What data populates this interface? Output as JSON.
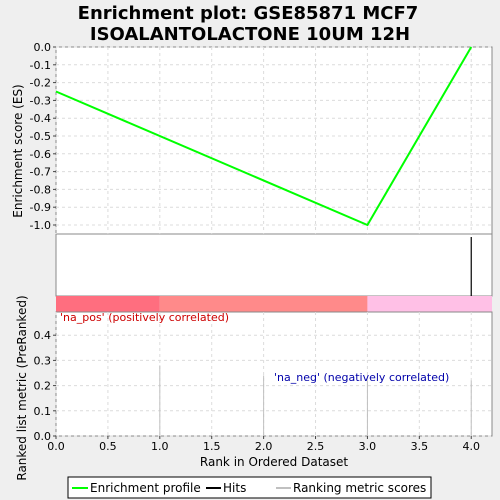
{
  "chart_data": {
    "title_line1": "Enrichment plot: GSE85871 MCF7",
    "title_line2": "ISOALANTOLACTONE 10UM 12H",
    "type": "line",
    "es_panel": {
      "ylabel": "Enrichment score (ES)",
      "ylim": [
        -1.05,
        0.0
      ],
      "yticks": [
        "0.0",
        "-0.1",
        "-0.2",
        "-0.3",
        "-0.4",
        "-0.5",
        "-0.6",
        "-0.7",
        "-0.8",
        "-0.9",
        "-1.0"
      ],
      "ytick_values": [
        0.0,
        -0.1,
        -0.2,
        -0.3,
        -0.4,
        -0.5,
        -0.6,
        -0.7,
        -0.8,
        -0.9,
        -1.0
      ],
      "series": [
        {
          "name": "Enrichment profile",
          "color": "#00ff00",
          "x": [
            0,
            3,
            4
          ],
          "y": [
            -0.25,
            -1.0,
            0.0
          ]
        }
      ],
      "grid": true
    },
    "hits_panel": {
      "hits_x": [
        4
      ]
    },
    "color_bar": {
      "segments": [
        {
          "x0": 0,
          "x1": 1,
          "color": "#ff6e7f"
        },
        {
          "x0": 1,
          "x1": 3,
          "color": "#ff8a8a"
        },
        {
          "x0": 3,
          "x1": 4.2,
          "color": "#ffc0e6"
        }
      ]
    },
    "metric_panel": {
      "ylabel": "Ranked list metric (PreRanked)",
      "ylim": [
        0.0,
        0.48
      ],
      "yticks": [
        "0.0",
        "0.1",
        "0.2",
        "0.3",
        "0.4"
      ],
      "ytick_values": [
        0.0,
        0.1,
        0.2,
        0.3,
        0.4
      ],
      "bars_x": [
        1,
        2,
        3,
        4
      ],
      "bars_y": [
        0.28,
        0.24,
        0.22,
        0.22
      ],
      "pos_label": "'na_pos' (positively correlated)",
      "neg_label": "'na_neg' (negatively correlated)",
      "pos_color": "#cc0000",
      "neg_color": "#0000aa",
      "grid": true
    },
    "xaxis": {
      "xlabel": "Rank in Ordered Dataset",
      "xlim": [
        0,
        4.2
      ],
      "xticks": [
        "0.0",
        "0.5",
        "1.0",
        "1.5",
        "2.0",
        "2.5",
        "3.0",
        "3.5",
        "4.0"
      ],
      "xtick_values": [
        0.0,
        0.5,
        1.0,
        1.5,
        2.0,
        2.5,
        3.0,
        3.5,
        4.0
      ]
    },
    "legend": {
      "placement": "bottom",
      "entries": [
        {
          "label": "Enrichment profile",
          "color": "#00ff00"
        },
        {
          "label": "Hits",
          "color": "#000000"
        },
        {
          "label": "Ranking metric scores",
          "color": "#c0c0c0"
        }
      ]
    }
  }
}
